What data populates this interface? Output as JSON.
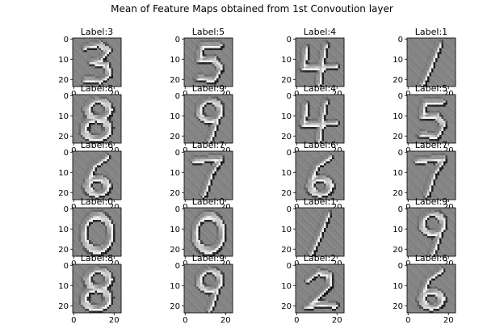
{
  "figure": {
    "title": "Mean of Feature Maps obtained from 1st Convoution layer"
  },
  "chart_data": {
    "type": "heatmap",
    "title": "Mean of Feature Maps obtained from 1st Convoution layer",
    "colormap": "grayscale",
    "rows": 5,
    "cols": 4,
    "image_size": [
      24,
      24
    ],
    "x_ticks": [
      "0",
      "20"
    ],
    "y_ticks": [
      "0",
      "10",
      "20"
    ],
    "panels": [
      {
        "label": "Label:3",
        "digit": 3
      },
      {
        "label": "Label:5",
        "digit": 5
      },
      {
        "label": "Label:4",
        "digit": 4
      },
      {
        "label": "Label:1",
        "digit": 1
      },
      {
        "label": "Label:8",
        "digit": 8
      },
      {
        "label": "Label:9",
        "digit": 9
      },
      {
        "label": "Label:4",
        "digit": 4
      },
      {
        "label": "Label:5",
        "digit": 5
      },
      {
        "label": "Label:6",
        "digit": 6
      },
      {
        "label": "Label:7",
        "digit": 7
      },
      {
        "label": "Label:6",
        "digit": 6
      },
      {
        "label": "Label:7",
        "digit": 7
      },
      {
        "label": "Label:0",
        "digit": 0
      },
      {
        "label": "Label:0",
        "digit": 0
      },
      {
        "label": "Label:1",
        "digit": 1
      },
      {
        "label": "Label:9",
        "digit": 9
      },
      {
        "label": "Label:8",
        "digit": 8
      },
      {
        "label": "Label:9",
        "digit": 9
      },
      {
        "label": "Label:2",
        "digit": 2
      },
      {
        "label": "Label:6",
        "digit": 6
      }
    ]
  }
}
